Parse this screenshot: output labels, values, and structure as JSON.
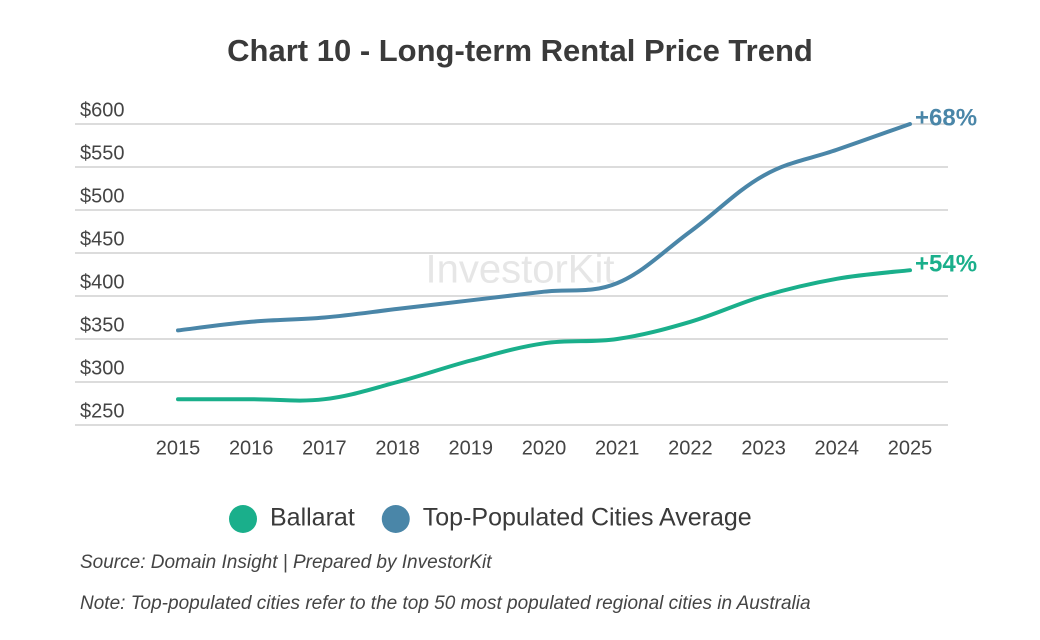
{
  "chart_data": {
    "type": "line",
    "title": "Chart 10 - Long-term Rental Price Trend",
    "x": [
      "2015",
      "2016",
      "2017",
      "2018",
      "2019",
      "2020",
      "2021",
      "2022",
      "2023",
      "2024",
      "2025"
    ],
    "series": [
      {
        "name": "Ballarat",
        "color": "#1aaf8b",
        "values": [
          280,
          280,
          280,
          300,
          325,
          345,
          350,
          370,
          400,
          420,
          430
        ]
      },
      {
        "name": "Top-Populated Cities Average",
        "color": "#4a86a8",
        "values": [
          360,
          370,
          375,
          385,
          395,
          405,
          415,
          475,
          540,
          570,
          600
        ]
      }
    ],
    "annotations": [
      {
        "text": "+54%",
        "series": 0
      },
      {
        "text": "+68%",
        "series": 1
      }
    ],
    "ylim": [
      250,
      600
    ],
    "yticks": [
      {
        "value": 250,
        "label": "$250"
      },
      {
        "value": 300,
        "label": "$300"
      },
      {
        "value": 350,
        "label": "$350"
      },
      {
        "value": 400,
        "label": "$400"
      },
      {
        "value": 450,
        "label": "$450"
      },
      {
        "value": 500,
        "label": "$500"
      },
      {
        "value": 550,
        "label": "$550"
      },
      {
        "value": 600,
        "label": "$600"
      }
    ],
    "grid": true,
    "watermark": "InvestorKit",
    "source": "Source: Domain Insight | Prepared by InvestorKit",
    "note": "Note: Top-populated cities refer to the top 50 most populated regional cities in Australia"
  }
}
